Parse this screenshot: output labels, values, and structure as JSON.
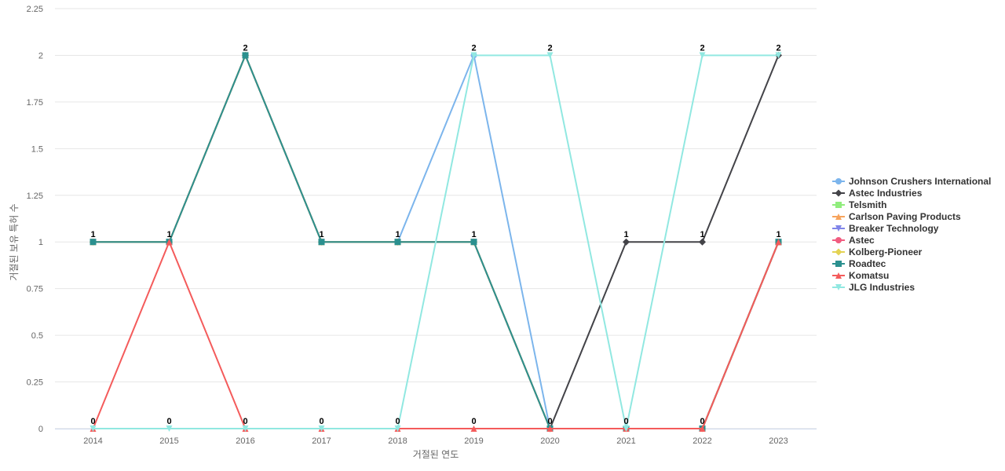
{
  "chart_data": {
    "type": "line",
    "title": "",
    "xlabel": "거절된 연도",
    "ylabel": "거절된 보유 특허 수",
    "x": [
      "2014",
      "2015",
      "2016",
      "2017",
      "2018",
      "2019",
      "2020",
      "2021",
      "2022",
      "2023"
    ],
    "ylim": [
      0,
      2.25
    ],
    "yticks": [
      "0",
      "0.25",
      "0.5",
      "0.75",
      "1",
      "1.25",
      "1.5",
      "1.75",
      "2",
      "2.25"
    ],
    "grid": true,
    "legend_position": "right",
    "series": [
      {
        "name": "Johnson Crushers International",
        "color": "#7cb5ec",
        "marker": "circle",
        "values": [
          1,
          1,
          2,
          1,
          1,
          2,
          0,
          0,
          0,
          1
        ]
      },
      {
        "name": "Astec Industries",
        "color": "#434348",
        "marker": "diamond",
        "values": [
          1,
          1,
          2,
          1,
          1,
          1,
          0,
          1,
          1,
          2
        ]
      },
      {
        "name": "Telsmith",
        "color": "#90ed7d",
        "marker": "square",
        "values": [
          1,
          1,
          2,
          1,
          1,
          1,
          0,
          0,
          0,
          1
        ]
      },
      {
        "name": "Carlson Paving Products",
        "color": "#f7a35c",
        "marker": "triangle",
        "values": [
          1,
          1,
          2,
          1,
          1,
          1,
          0,
          0,
          0,
          1
        ]
      },
      {
        "name": "Breaker Technology",
        "color": "#8085e9",
        "marker": "triangle-down",
        "values": [
          1,
          1,
          2,
          1,
          1,
          1,
          0,
          0,
          0,
          1
        ]
      },
      {
        "name": "Astec",
        "color": "#f15c80",
        "marker": "circle",
        "values": [
          1,
          1,
          2,
          1,
          1,
          1,
          0,
          0,
          0,
          1
        ]
      },
      {
        "name": "Kolberg-Pioneer",
        "color": "#e4d354",
        "marker": "diamond",
        "values": [
          1,
          1,
          2,
          1,
          1,
          1,
          0,
          0,
          0,
          1
        ]
      },
      {
        "name": "Roadtec",
        "color": "#2b908f",
        "marker": "square",
        "values": [
          1,
          1,
          2,
          1,
          1,
          1,
          0,
          0,
          0,
          1
        ]
      },
      {
        "name": "Komatsu",
        "color": "#f45b5b",
        "marker": "triangle",
        "values": [
          0,
          1,
          0,
          0,
          0,
          0,
          0,
          0,
          0,
          1
        ]
      },
      {
        "name": "JLG Industries",
        "color": "#91e8e1",
        "marker": "triangle-down",
        "values": [
          0,
          0,
          0,
          0,
          0,
          2,
          2,
          0,
          2,
          2
        ]
      }
    ],
    "data_labels": [
      {
        "x": "2014",
        "y": 1,
        "text": "1"
      },
      {
        "x": "2015",
        "y": 1,
        "text": "1"
      },
      {
        "x": "2016",
        "y": 2,
        "text": "2"
      },
      {
        "x": "2017",
        "y": 1,
        "text": "1"
      },
      {
        "x": "2018",
        "y": 1,
        "text": "1"
      },
      {
        "x": "2019",
        "y": 1,
        "text": "1"
      },
      {
        "x": "2021",
        "y": 1,
        "text": "1"
      },
      {
        "x": "2022",
        "y": 1,
        "text": "1"
      },
      {
        "x": "2023",
        "y": 1,
        "text": "1"
      },
      {
        "x": "2019",
        "y": 2,
        "text": "2"
      },
      {
        "x": "2020",
        "y": 2,
        "text": "2"
      },
      {
        "x": "2022",
        "y": 2,
        "text": "2"
      },
      {
        "x": "2023",
        "y": 2,
        "text": "2"
      },
      {
        "x": "2014",
        "y": 0,
        "text": "0"
      },
      {
        "x": "2015",
        "y": 0,
        "text": "0"
      },
      {
        "x": "2016",
        "y": 0,
        "text": "0"
      },
      {
        "x": "2017",
        "y": 0,
        "text": "0"
      },
      {
        "x": "2018",
        "y": 0,
        "text": "0"
      },
      {
        "x": "2019",
        "y": 0,
        "text": "0"
      },
      {
        "x": "2020",
        "y": 0,
        "text": "0"
      },
      {
        "x": "2021",
        "y": 0,
        "text": "0"
      },
      {
        "x": "2022",
        "y": 0,
        "text": "0"
      }
    ]
  }
}
